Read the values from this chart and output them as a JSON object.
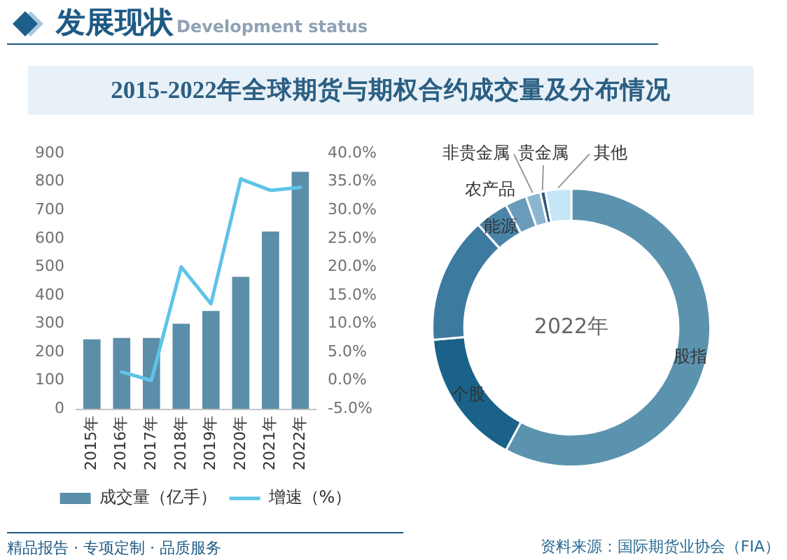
{
  "chart_data": [
    {
      "type": "bar",
      "title": "2015-2022年全球期货与期权合约成交量及分布情况",
      "annotations": [
        "发展现状",
        "Development status",
        "精品报告 · 专项定制 · 品质服务"
      ],
      "categories": [
        "2015年",
        "2016年",
        "2017年",
        "2018年",
        "2019年",
        "2020年",
        "2021年",
        "2022年"
      ],
      "series": [
        {
          "name": "成交量（亿手）",
          "type": "bar",
          "color": "#5b8ea8",
          "values": [
            245,
            250,
            250,
            300,
            345,
            465,
            625,
            835
          ]
        },
        {
          "name": "增速（%）",
          "type": "line",
          "axis": "y2",
          "color": "#5ec3e8",
          "values": [
            null,
            1.5,
            0,
            20,
            13.5,
            35.5,
            33.5,
            34
          ]
        }
      ],
      "ylim": [
        0,
        900
      ],
      "yticks": [
        0,
        100,
        200,
        300,
        400,
        500,
        600,
        700,
        800,
        900
      ],
      "y2lim": [
        -5,
        40
      ],
      "y2ticks": [
        {
          "value": -5,
          "label": "-5.0%"
        },
        {
          "value": 0,
          "label": "0.0%"
        },
        {
          "value": 5,
          "label": "5.0%"
        },
        {
          "value": 10,
          "label": "10.0%"
        },
        {
          "value": 15,
          "label": "15.0%"
        },
        {
          "value": 20,
          "label": "20.0%"
        },
        {
          "value": 25,
          "label": "25.0%"
        },
        {
          "value": 30,
          "label": "30.0%"
        },
        {
          "value": 35,
          "label": "35.0%"
        },
        {
          "value": 40,
          "label": "40.0%"
        }
      ],
      "grid": false,
      "legend": "bottom",
      "marker": "none",
      "line_style": "solid"
    },
    {
      "type": "donut",
      "annotations": [
        "2022年",
        "资料来源：国际期货业协会（FIA）"
      ],
      "categories": [
        "股指",
        "个股",
        null,
        "能源",
        "农产品",
        "非贵金属",
        "贵金属",
        "其他"
      ],
      "values": [
        57.8,
        15.8,
        14.7,
        3.9,
        2.5,
        1.7,
        0.6,
        3.0
      ],
      "colors": [
        "#5b93ae",
        "#1a6289",
        "#3d7aa0",
        "#4a84a8",
        "#6a9bba",
        "#8db5cf",
        "#2a5a7c",
        "#c5e6f5"
      ],
      "legend": false
    }
  ]
}
